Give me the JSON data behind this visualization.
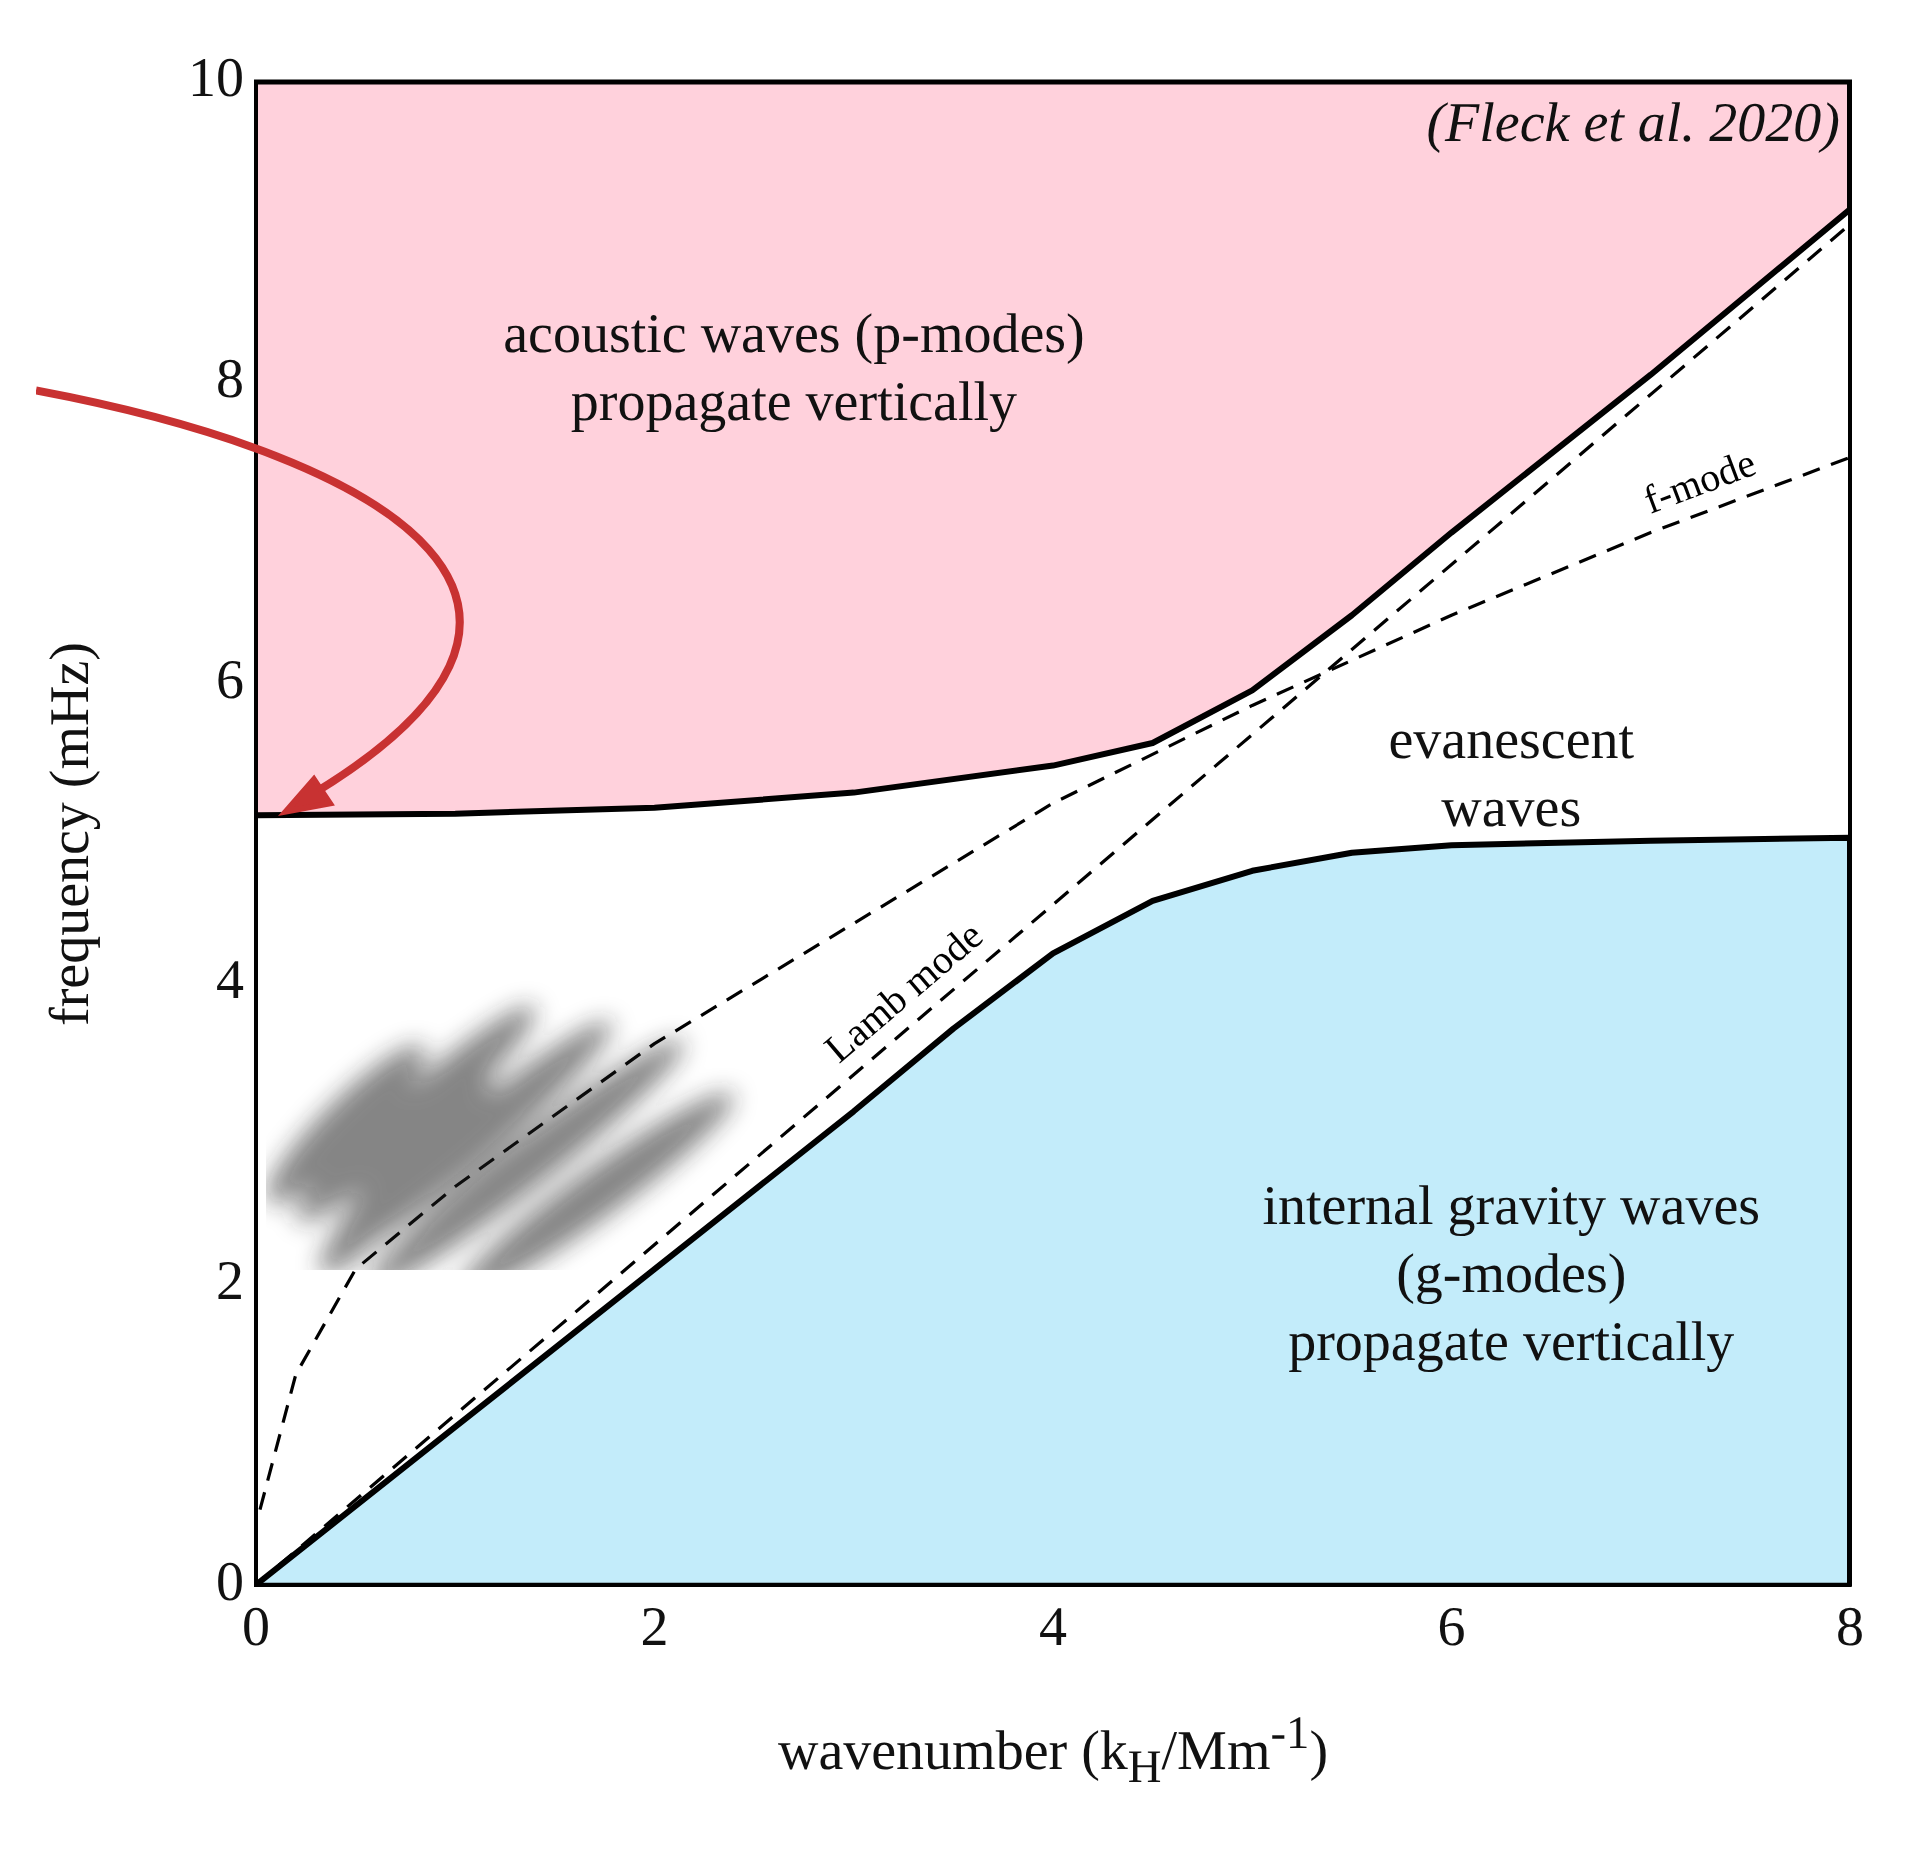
{
  "chart_data": {
    "type": "line",
    "xlabel": "wavenumber (k$_{H}$/Mm$^{-1}$)",
    "ylabel": "frequency (mHz)",
    "xlim": [
      0,
      8
    ],
    "xticks": [
      0,
      2,
      4,
      6,
      8
    ],
    "ylim": [
      0,
      10
    ],
    "yticks": [
      0,
      2,
      4,
      6,
      8,
      10
    ],
    "grid": false,
    "legend": false,
    "marker": "none",
    "annotations": [
      "(Fleck et al. 2020)",
      "acoustic waves (p-modes)\npropagate vertically",
      "evanescent\nwaves",
      "internal gravity waves\n(g-modes)\npropagate vertically"
    ],
    "series": [
      {
        "type": "area",
        "color": "#ffd1dc",
        "x": [
          0,
          1,
          2,
          3,
          4,
          4.5,
          5,
          5.5,
          6,
          7,
          8,
          8,
          0
        ],
        "values": [
          5.12,
          5.13,
          5.17,
          5.27,
          5.45,
          5.6,
          5.95,
          6.45,
          7.0,
          8.05,
          9.15,
          10,
          10
        ]
      },
      {
        "type": "area",
        "color": "#c3ecfa",
        "x": [
          0,
          1,
          2,
          3,
          3.5,
          4,
          4.5,
          5,
          5.5,
          6,
          7,
          8,
          8
        ],
        "values": [
          0,
          1.05,
          2.1,
          3.15,
          3.7,
          4.2,
          4.55,
          4.75,
          4.87,
          4.92,
          4.95,
          4.97,
          0
        ]
      },
      {
        "type": "line",
        "name": "f-mode",
        "color": "#000000",
        "line_style": "dashed",
        "x": [
          0.02,
          0.2,
          0.5,
          1,
          2,
          3,
          4,
          5,
          6,
          7,
          8
        ],
        "values": [
          0.5,
          1.4,
          2.1,
          2.65,
          3.6,
          4.4,
          5.2,
          5.85,
          6.45,
          7.0,
          7.5
        ]
      },
      {
        "type": "line",
        "name": "Lamb mode",
        "color": "#000000",
        "line_style": "dashed",
        "x": [
          0,
          8
        ],
        "values": [
          0,
          9.05
        ]
      }
    ]
  }
}
